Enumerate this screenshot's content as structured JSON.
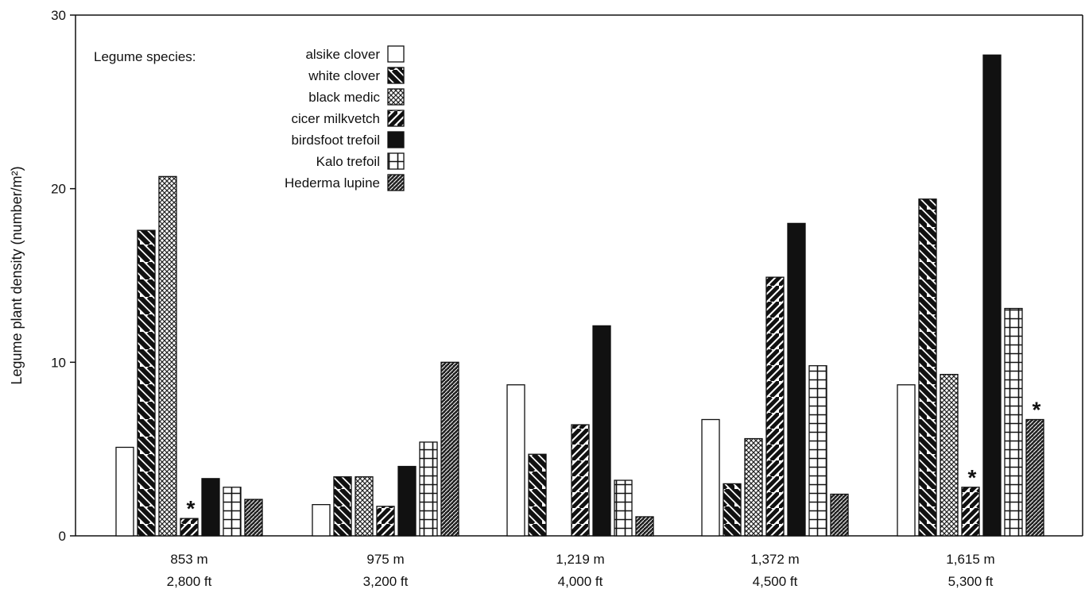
{
  "chart_data": {
    "type": "bar",
    "ylabel": "Legume plant density (number/m²)",
    "ylim": [
      0,
      30
    ],
    "yticks": [
      0,
      10,
      20,
      30
    ],
    "categories": [
      "853 m",
      "975 m",
      "1,219 m",
      "1,372 m",
      "1,615 m"
    ],
    "categories_ft": [
      "2,800 ft",
      "3,200 ft",
      "4,000 ft",
      "4,500 ft",
      "5,300 ft"
    ],
    "legend_title": "Legume species:",
    "legend_placement": "top-left",
    "grid": false,
    "series": [
      {
        "name": "alsike clover",
        "pattern": "blank",
        "values": [
          5.1,
          1.8,
          8.7,
          6.7,
          8.7
        ]
      },
      {
        "name": "white clover",
        "pattern": "diag-thick",
        "values": [
          17.6,
          3.4,
          4.7,
          3.0,
          19.4
        ]
      },
      {
        "name": "black medic",
        "pattern": "cross-hatch",
        "values": [
          20.7,
          3.4,
          null,
          5.6,
          9.3
        ]
      },
      {
        "name": "cicer milkvetch",
        "pattern": "diag-up",
        "values": [
          1.0,
          1.7,
          6.4,
          14.9,
          2.8
        ]
      },
      {
        "name": "birdsfoot trefoil",
        "pattern": "solid",
        "values": [
          3.3,
          4.0,
          12.1,
          18.0,
          27.7
        ]
      },
      {
        "name": "Kalo trefoil",
        "pattern": "grid",
        "values": [
          2.8,
          5.4,
          3.2,
          9.8,
          13.1
        ]
      },
      {
        "name": "Hederma lupine",
        "pattern": "dense",
        "values": [
          2.1,
          10.0,
          1.1,
          2.4,
          6.7
        ]
      }
    ],
    "annotations": [
      {
        "text": "*",
        "category": "853 m",
        "series": "cicer milkvetch"
      },
      {
        "text": "*",
        "category": "1,615 m",
        "series": "cicer milkvetch"
      },
      {
        "text": "*",
        "category": "1,615 m",
        "series": "Hederma lupine"
      }
    ],
    "colors": {
      "ink": "#111111",
      "background": "#ffffff"
    }
  }
}
